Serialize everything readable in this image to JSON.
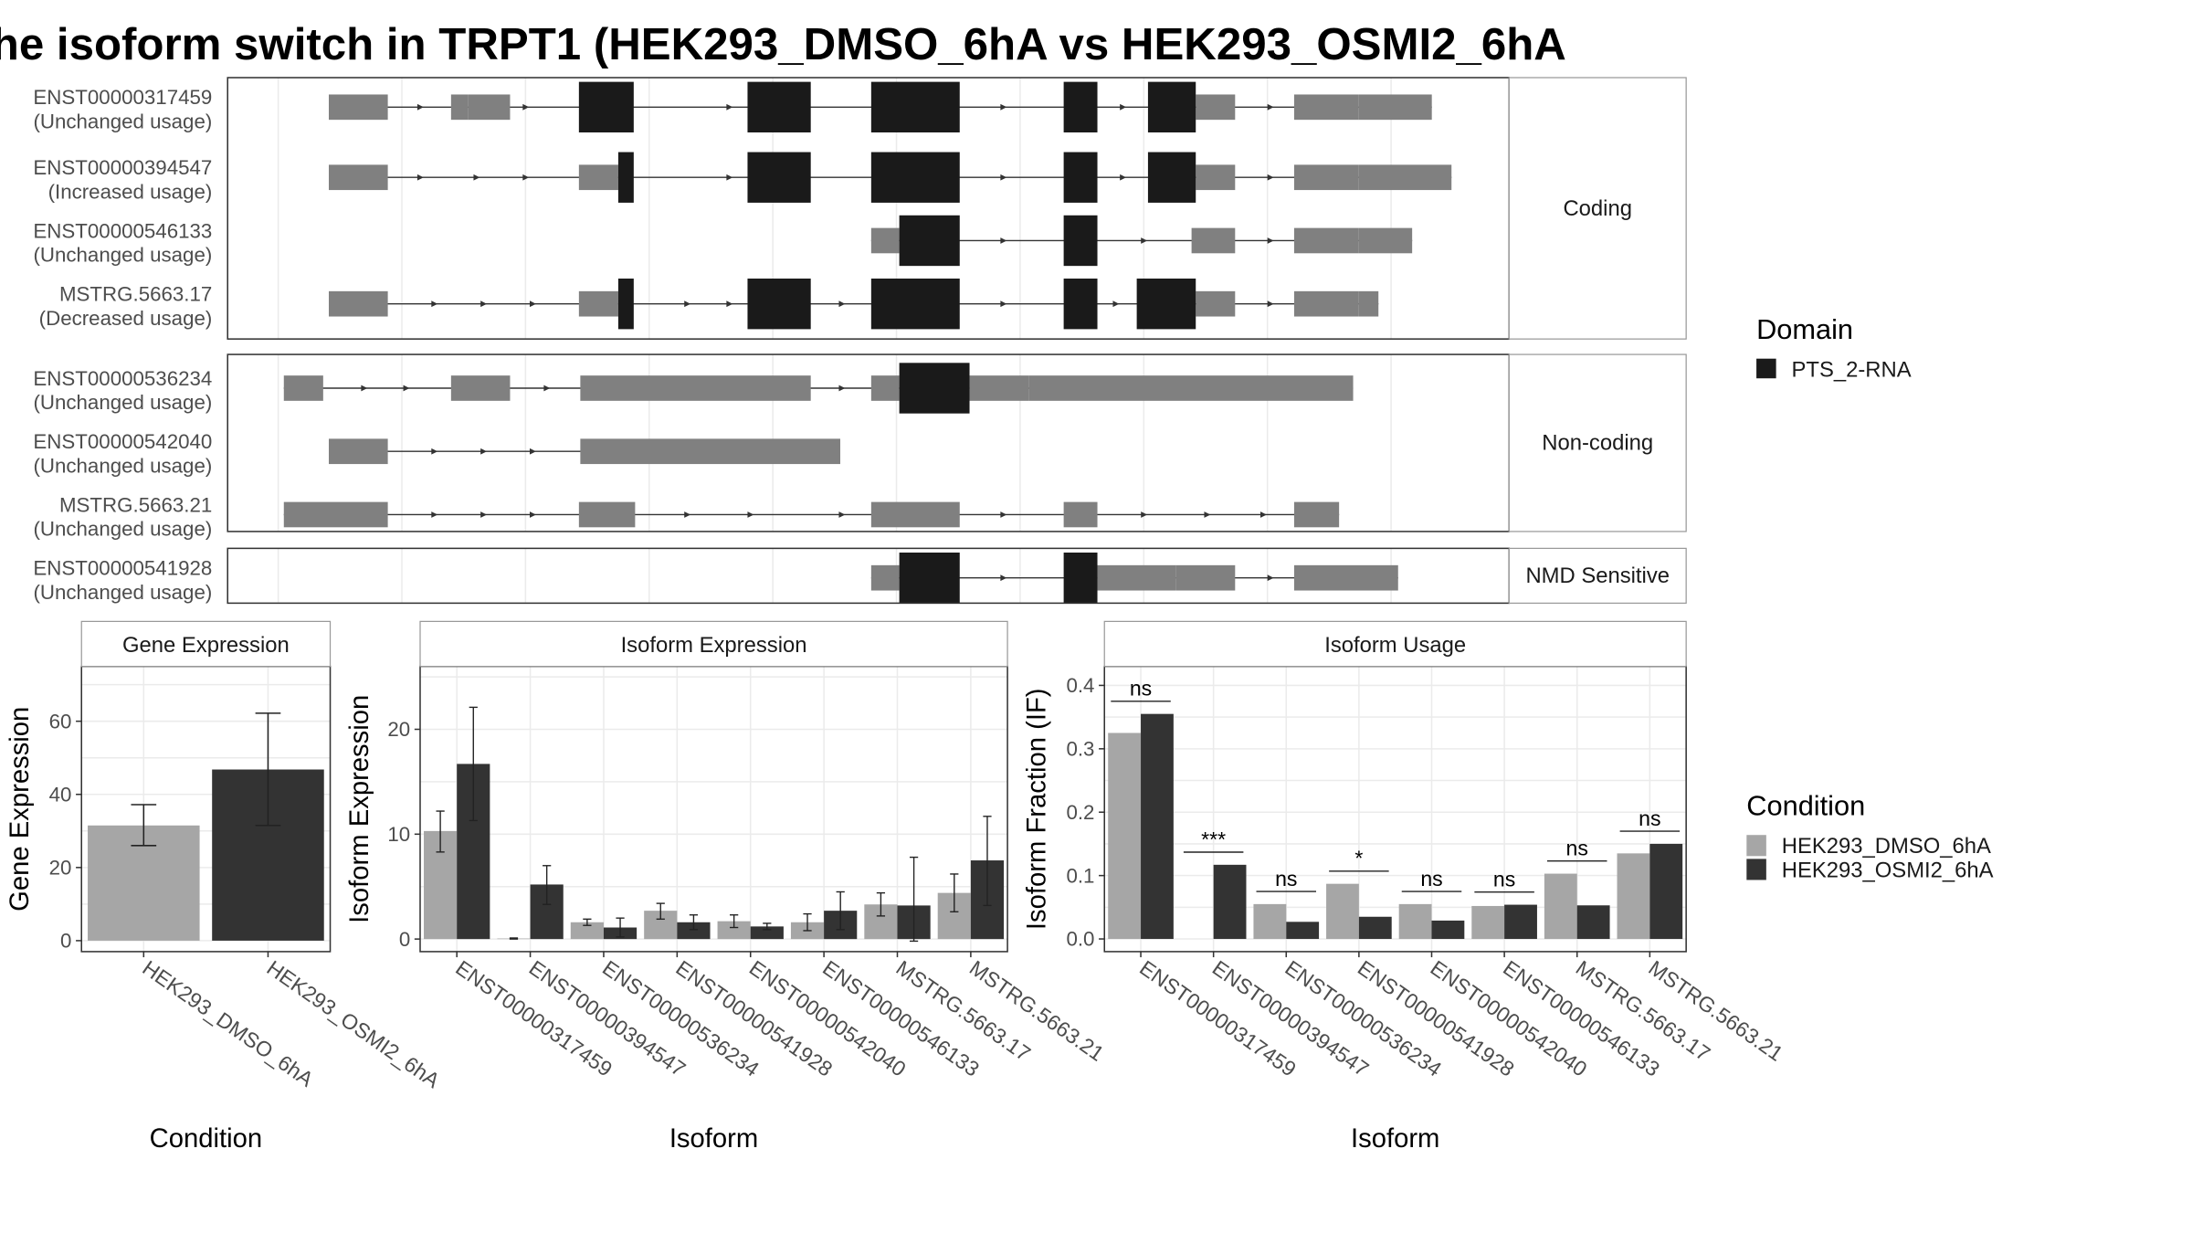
{
  "title": "he isoform switch in TRPT1 (HEK293_DMSO_6hA vs HEK293_OSMI2_6hA",
  "colors": {
    "utr": "#808080",
    "cds": "#1a1a1a",
    "domain": "#1a1a1a",
    "dmso": "#a6a6a6",
    "osmi": "#333333",
    "grid": "#ebebeb",
    "panel_border": "#333333",
    "strip_border": "#999999"
  },
  "isoform_structures": {
    "groups": [
      {
        "name": "Coding",
        "isoforms": [
          {
            "id": "ENST00000317459",
            "usage": "(Unchanged usage)",
            "utr": [
              [
                234,
                276
              ],
              [
                321,
                333
              ],
              [
                333,
                363
              ],
              [
                851,
                879
              ],
              [
                921,
                967
              ],
              [
                967,
                1019
              ]
            ],
            "cds": [
              [
                412,
                451
              ],
              [
                532,
                577
              ],
              [
                620,
                683
              ],
              [
                757,
                781
              ],
              [
                817,
                851
              ]
            ],
            "arrows": [
              300,
              375,
              520,
              715,
              800,
              905
            ]
          },
          {
            "id": "ENST00000394547",
            "usage": "(Increased usage)",
            "utr": [
              [
                234,
                276
              ],
              [
                412,
                440
              ],
              [
                851,
                879
              ],
              [
                921,
                967
              ],
              [
                967,
                1033
              ]
            ],
            "cds": [
              [
                440,
                451
              ],
              [
                532,
                577
              ],
              [
                620,
                683
              ],
              [
                757,
                781
              ],
              [
                817,
                851
              ]
            ],
            "arrows": [
              300,
              340,
              375,
              520,
              715,
              800,
              905
            ]
          },
          {
            "id": "ENST00000546133",
            "usage": "(Unchanged usage)",
            "utr": [
              [
                620,
                640
              ],
              [
                848,
                879
              ],
              [
                921,
                967
              ],
              [
                967,
                1005
              ]
            ],
            "cds": [
              [
                640,
                683
              ],
              [
                757,
                781
              ]
            ],
            "arrows": [
              715,
              815,
              905
            ]
          },
          {
            "id": "MSTRG.5663.17",
            "usage": "(Decreased usage)",
            "utr": [
              [
                234,
                276
              ],
              [
                412,
                440
              ],
              [
                851,
                879
              ],
              [
                921,
                967
              ],
              [
                967,
                981
              ]
            ],
            "cds": [
              [
                440,
                451
              ],
              [
                532,
                577
              ],
              [
                620,
                683
              ],
              [
                757,
                781
              ],
              [
                809,
                851
              ]
            ],
            "arrows": [
              310,
              345,
              380,
              490,
              520,
              600,
              715,
              795,
              905
            ]
          }
        ]
      },
      {
        "name": "Non-coding",
        "isoforms": [
          {
            "id": "ENST00000536234",
            "usage": "(Unchanged usage)",
            "utr": [
              [
                202,
                230
              ],
              [
                321,
                363
              ],
              [
                413,
                577
              ],
              [
                620,
                640
              ],
              [
                690,
                732
              ],
              [
                732,
                963
              ]
            ],
            "cds": [
              [
                640,
                690
              ]
            ],
            "arrows": [
              260,
              290,
              390,
              600
            ]
          },
          {
            "id": "ENST00000542040",
            "usage": "(Unchanged usage)",
            "utr": [
              [
                234,
                276
              ],
              [
                413,
                598
              ]
            ],
            "cds": [],
            "arrows": [
              310,
              345,
              380
            ]
          },
          {
            "id": "MSTRG.5663.21",
            "usage": "(Unchanged usage)",
            "utr": [
              [
                202,
                276
              ],
              [
                412,
                452
              ],
              [
                620,
                683
              ],
              [
                757,
                781
              ],
              [
                921,
                953
              ]
            ],
            "cds": [],
            "arrows": [
              310,
              345,
              380,
              490,
              535,
              600,
              715,
              815,
              860,
              900
            ]
          }
        ]
      },
      {
        "name": "NMD Sensitive",
        "isoforms": [
          {
            "id": "ENST00000541928",
            "usage": "(Unchanged usage)",
            "utr": [
              [
                620,
                640
              ],
              [
                781,
                837
              ],
              [
                837,
                879
              ],
              [
                921,
                995
              ]
            ],
            "cds": [
              [
                640,
                683
              ],
              [
                757,
                781
              ]
            ],
            "arrows": [
              715,
              905
            ]
          }
        ]
      }
    ]
  },
  "domain_legend": {
    "title": "Domain",
    "items": [
      "PTS_2-RNA"
    ]
  },
  "condition_legend": {
    "title": "Condition",
    "items": [
      "HEK293_DMSO_6hA",
      "HEK293_OSMI2_6hA"
    ]
  },
  "chart_data": [
    {
      "type": "bar",
      "title": "Gene Expression",
      "xlabel": "Condition",
      "ylabel": "Gene Expression",
      "categories": [
        "HEK293_DMSO_6hA",
        "HEK293_OSMI2_6hA"
      ],
      "values": [
        31.5,
        46.8
      ],
      "error": [
        [
          26.0,
          37.2
        ],
        [
          31.5,
          62.2
        ]
      ],
      "ylim": [
        -3,
        75
      ],
      "yticks": [
        0,
        20,
        40,
        60
      ]
    },
    {
      "type": "bar",
      "title": "Isoform Expression",
      "xlabel": "Isoform",
      "ylabel": "Isoform Expression",
      "categories": [
        "ENST00000317459",
        "ENST00000394547",
        "ENST00000536234",
        "ENST00000541928",
        "ENST00000542040",
        "ENST00000546133",
        "MSTRG.5663.17",
        "MSTRG.5663.21"
      ],
      "series": [
        {
          "name": "HEK293_DMSO_6hA",
          "values": [
            10.3,
            0.05,
            1.6,
            2.7,
            1.7,
            1.6,
            3.3,
            4.4
          ],
          "error": [
            [
              8.3,
              12.2
            ],
            [
              0.0,
              0.1
            ],
            [
              1.3,
              1.9
            ],
            [
              1.9,
              3.4
            ],
            [
              1.1,
              2.3
            ],
            [
              0.8,
              2.4
            ],
            [
              2.2,
              4.4
            ],
            [
              2.6,
              6.2
            ]
          ]
        },
        {
          "name": "HEK293_OSMI2_6hA",
          "values": [
            16.7,
            5.2,
            1.1,
            1.6,
            1.2,
            2.7,
            3.2,
            7.5
          ],
          "error": [
            [
              11.3,
              22.1
            ],
            [
              3.3,
              7.0
            ],
            [
              0.2,
              2.0
            ],
            [
              0.9,
              2.3
            ],
            [
              0.9,
              1.5
            ],
            [
              0.9,
              4.5
            ],
            [
              -0.2,
              7.8
            ],
            [
              3.2,
              11.7
            ]
          ]
        }
      ],
      "ylim": [
        -1.2,
        26
      ],
      "yticks": [
        0,
        10,
        20
      ]
    },
    {
      "type": "bar",
      "title": "Isoform Usage",
      "xlabel": "Isoform",
      "ylabel": "Isoform Fraction (IF)",
      "categories": [
        "ENST00000317459",
        "ENST00000394547",
        "ENST00000536234",
        "ENST00000541928",
        "ENST00000542040",
        "ENST00000546133",
        "MSTRG.5663.17",
        "MSTRG.5663.21"
      ],
      "series": [
        {
          "name": "HEK293_DMSO_6hA",
          "values": [
            0.325,
            0.0,
            0.055,
            0.087,
            0.055,
            0.052,
            0.103,
            0.135
          ]
        },
        {
          "name": "HEK293_OSMI2_6hA",
          "values": [
            0.355,
            0.117,
            0.027,
            0.035,
            0.029,
            0.054,
            0.053,
            0.15
          ]
        }
      ],
      "significance": [
        "ns",
        "***",
        "ns",
        "*",
        "ns",
        "ns",
        "ns",
        "ns"
      ],
      "ylim": [
        -0.02,
        0.43
      ],
      "yticks": [
        0.0,
        0.1,
        0.2,
        0.3,
        0.4
      ],
      "ytick_labels": [
        "0.0",
        "0.1",
        "0.2",
        "0.3",
        "0.4"
      ]
    }
  ]
}
